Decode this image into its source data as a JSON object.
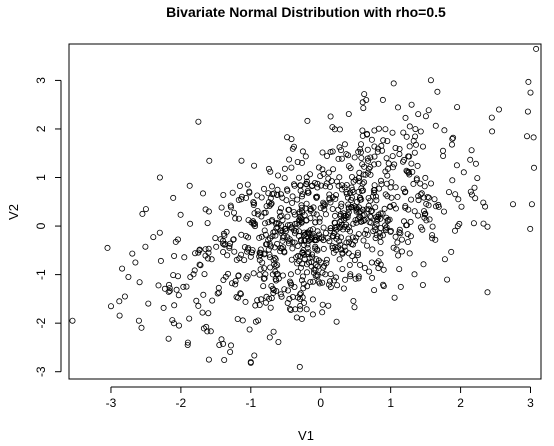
{
  "chart_data": {
    "type": "scatter",
    "title": "Bivariate Normal Distribution with rho=0.5",
    "xlabel": "V1",
    "ylabel": "V2",
    "xlim": [
      -3.6,
      3.15
    ],
    "ylim": [
      -3.15,
      3.75
    ],
    "xticks": [
      -3,
      -2,
      -1,
      0,
      1,
      2,
      3
    ],
    "yticks": [
      -3,
      -2,
      -1,
      0,
      1,
      2,
      3
    ],
    "xtick_labels": [
      "-3",
      "-2",
      "-1",
      "0",
      "1",
      "2",
      "3"
    ],
    "ytick_labels": [
      "-3",
      "-2",
      "-1",
      "0",
      "1",
      "2",
      "3"
    ],
    "grid": false,
    "legend": false,
    "marker": "open-circle",
    "point_color": "#000000",
    "n_points": 1000,
    "rho": 0.5,
    "seed": 20240501,
    "points": [
      [
        3.08,
        3.65
      ],
      [
        2.97,
        2.97
      ],
      [
        3.0,
        2.75
      ],
      [
        2.95,
        1.85
      ],
      [
        3.05,
        1.2
      ],
      [
        3.02,
        0.45
      ],
      [
        -3.55,
        -1.95
      ],
      [
        -3.05,
        -0.45
      ],
      [
        -3.0,
        -1.65
      ],
      [
        -2.88,
        -1.55
      ],
      [
        -2.8,
        -1.45
      ],
      [
        -2.75,
        -1.05
      ],
      [
        -2.65,
        -0.75
      ],
      [
        -2.55,
        0.25
      ],
      [
        -2.5,
        0.35
      ],
      [
        -2.6,
        -1.95
      ],
      [
        -1.75,
        2.15
      ],
      [
        -1.6,
        -2.75
      ],
      [
        -1.0,
        -2.8
      ],
      [
        -0.3,
        -2.9
      ],
      [
        -1.45,
        -2.45
      ],
      [
        2.55,
        2.4
      ],
      [
        2.45,
        1.95
      ],
      [
        1.95,
        2.45
      ],
      [
        1.3,
        2.5
      ],
      [
        0.6,
        2.55
      ],
      [
        2.35,
        0.4
      ],
      [
        2.75,
        0.45
      ],
      [
        -2.3,
        1.0
      ],
      [
        -2.1,
        -2.0
      ],
      [
        -1.9,
        -2.4
      ]
    ]
  }
}
